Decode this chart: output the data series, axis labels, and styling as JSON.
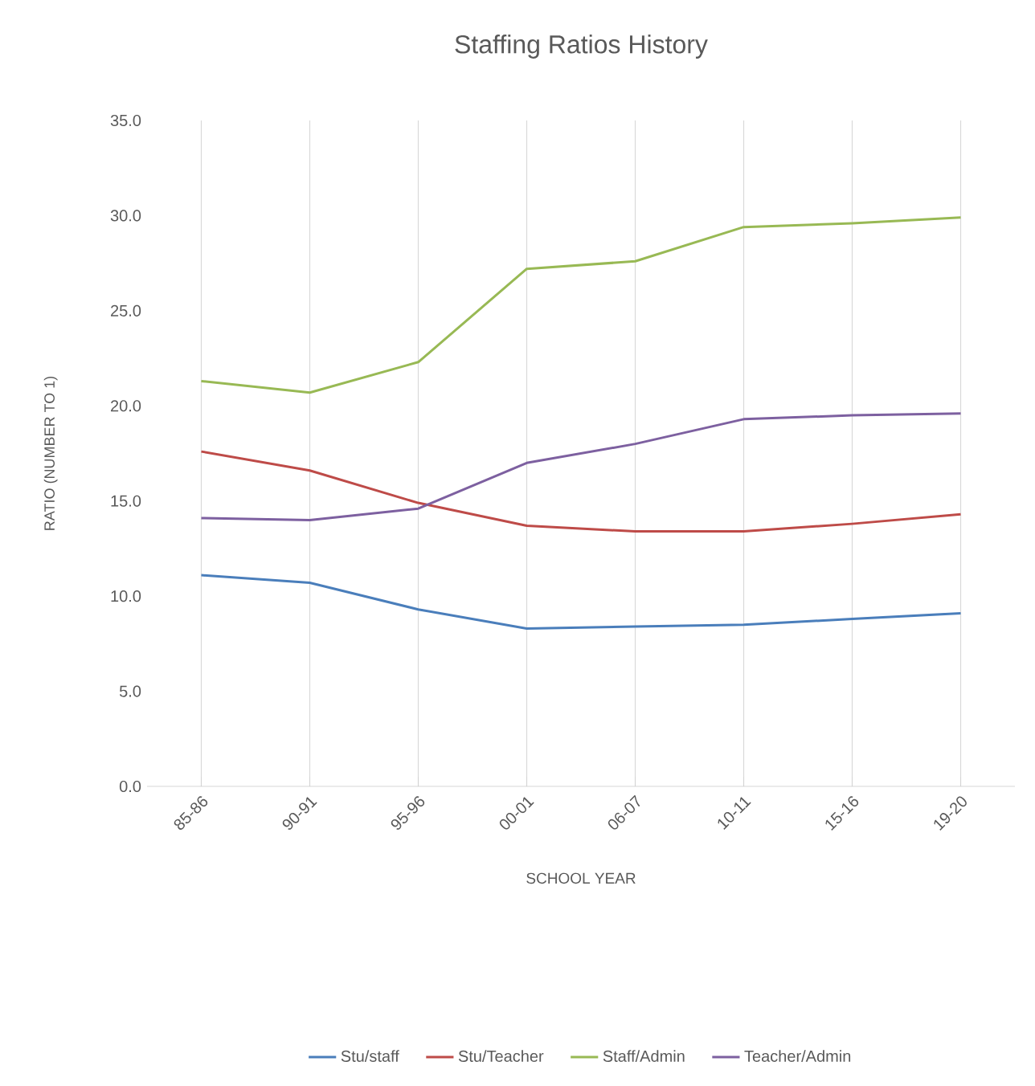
{
  "chart_data": {
    "type": "line",
    "title": "Staffing Ratios History",
    "xlabel": "SCHOOL YEAR",
    "ylabel": "RATIO (NUMBER TO 1)",
    "categories": [
      "85-86",
      "90-91",
      "95-96",
      "00-01",
      "06-07",
      "10-11",
      "15-16",
      "19-20"
    ],
    "series": [
      {
        "name": "Stu/staff",
        "color": "#4a7ebb",
        "values": [
          11.1,
          10.7,
          9.3,
          8.3,
          8.4,
          8.5,
          8.8,
          9.1
        ]
      },
      {
        "name": "Stu/Teacher",
        "color": "#be4b48",
        "values": [
          17.6,
          16.6,
          14.9,
          13.7,
          13.4,
          13.4,
          13.8,
          14.3
        ]
      },
      {
        "name": "Staff/Admin",
        "color": "#98b954",
        "values": [
          21.3,
          20.7,
          22.3,
          27.2,
          27.6,
          29.4,
          29.6,
          29.9
        ]
      },
      {
        "name": "Teacher/Admin",
        "color": "#7d60a0",
        "values": [
          14.1,
          14.0,
          14.6,
          17.0,
          18.0,
          19.3,
          19.5,
          19.6
        ]
      }
    ],
    "ylim": [
      0,
      35
    ],
    "yticks": [
      {
        "value": 0,
        "label": "0.0"
      },
      {
        "value": 5,
        "label": "5.0"
      },
      {
        "value": 10,
        "label": "10.0"
      },
      {
        "value": 15,
        "label": "15.0"
      },
      {
        "value": 20,
        "label": "20.0"
      },
      {
        "value": 25,
        "label": "25.0"
      },
      {
        "value": 30,
        "label": "30.0"
      },
      {
        "value": 35,
        "label": "35.0"
      }
    ],
    "grid": "x",
    "legend": "bottom",
    "marker": "none",
    "line_style": "solid"
  }
}
